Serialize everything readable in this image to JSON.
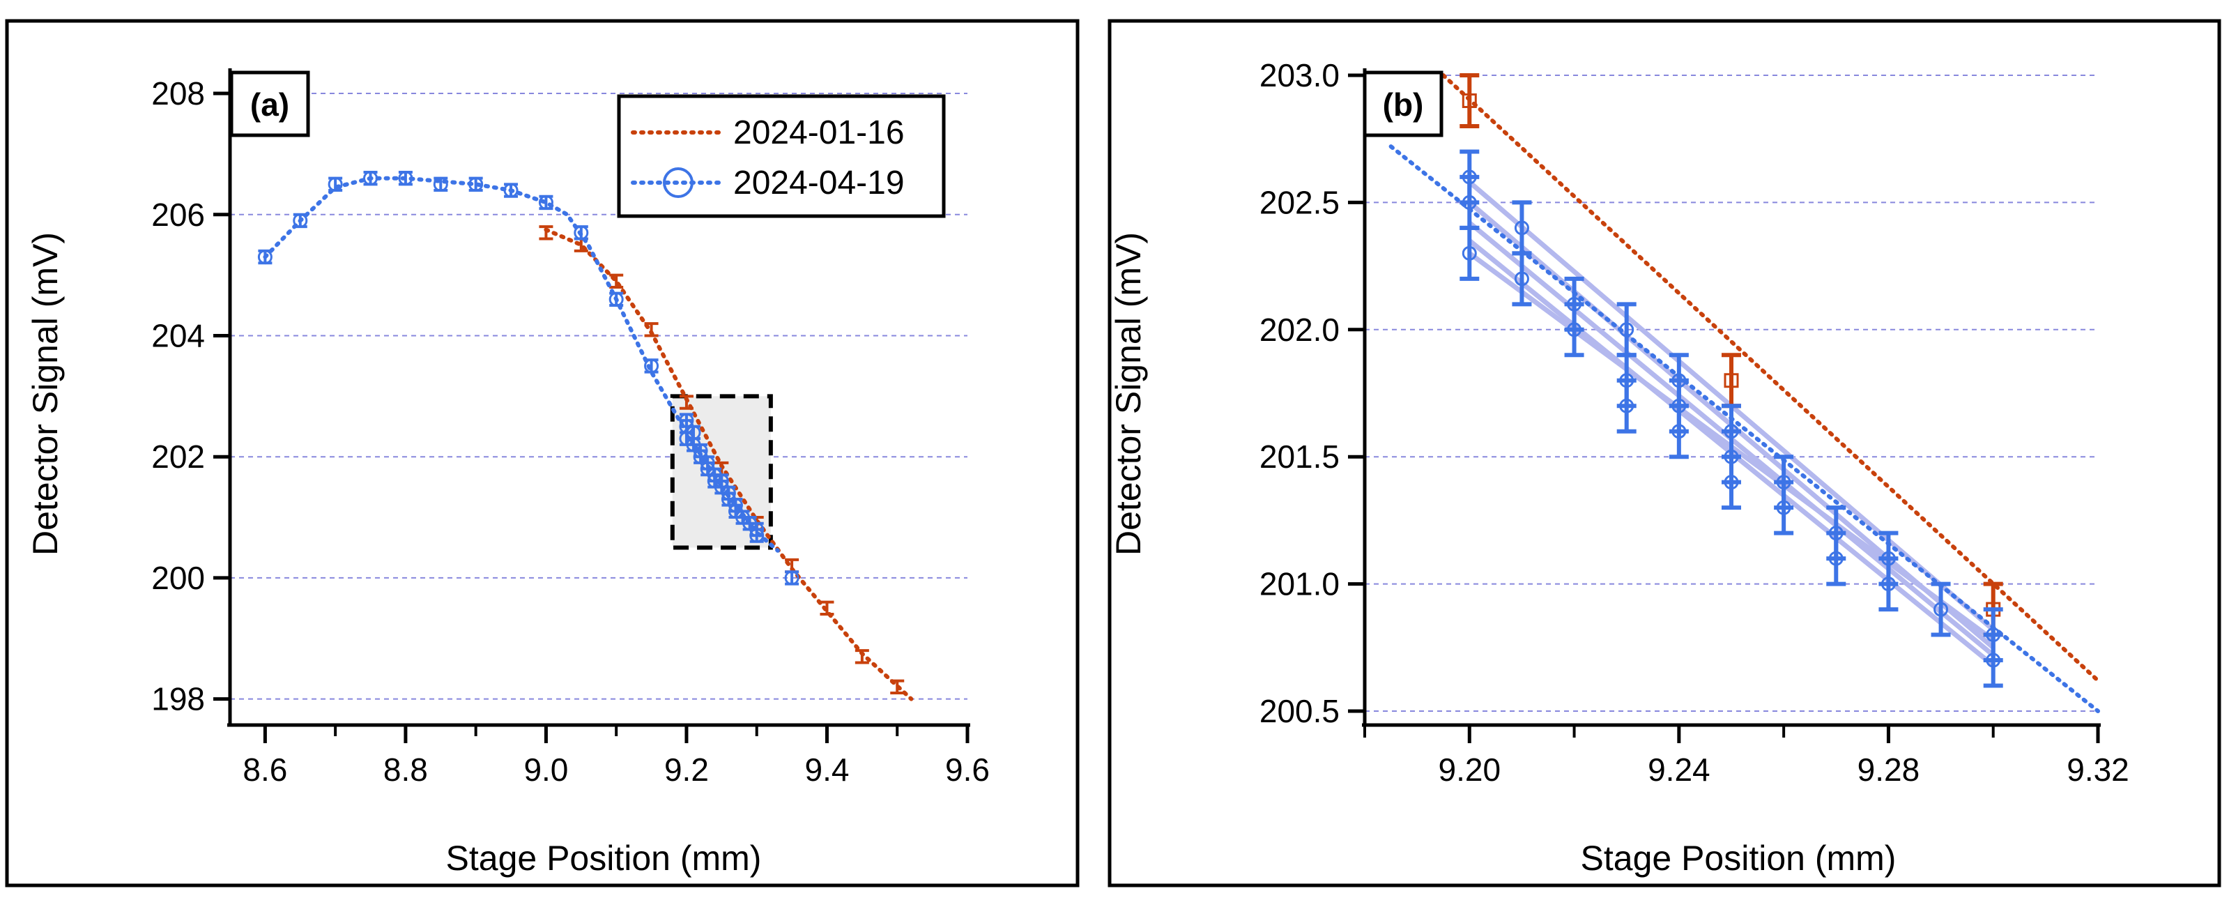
{
  "colors": {
    "series_2024_01_16": "#c8410c",
    "series_2024_04_19": "#3d74e6",
    "fit_band": "#b3b8ee",
    "grid": "#8888dd",
    "inset_fill": "#ececec"
  },
  "chart_data": [
    {
      "type": "line",
      "panel_label": "(a)",
      "xlabel": "Stage Position (mm)",
      "ylabel": "Detector Signal (mV)",
      "xlim": [
        8.55,
        9.6
      ],
      "ylim": [
        197.8,
        208.3
      ],
      "xticks": [
        "8.6",
        "8.8",
        "9.0",
        "9.2",
        "9.4",
        "9.6"
      ],
      "yticks": [
        "198",
        "200",
        "202",
        "204",
        "206",
        "208"
      ],
      "grid": "horizontal dashed",
      "legend": {
        "position": "top-right",
        "entries": [
          "2024-01-16",
          "2024-04-19"
        ]
      },
      "inset_box": {
        "x": [
          9.18,
          9.32
        ],
        "y": [
          200.5,
          203.0
        ]
      },
      "series": [
        {
          "name": "2024-01-16",
          "marker": "error-bar",
          "line": "dotted",
          "x": [
            9.0,
            9.05,
            9.1,
            9.15,
            9.2,
            9.25,
            9.3,
            9.35,
            9.4,
            9.45,
            9.5
          ],
          "y": [
            205.7,
            205.5,
            204.9,
            204.1,
            202.9,
            201.8,
            200.9,
            200.2,
            199.5,
            198.7,
            198.2
          ],
          "err": [
            0.1,
            0.1,
            0.1,
            0.1,
            0.1,
            0.1,
            0.1,
            0.1,
            0.1,
            0.1,
            0.1
          ],
          "fit_x": [
            9.0,
            9.05,
            9.1,
            9.15,
            9.2,
            9.25,
            9.3,
            9.35,
            9.4,
            9.45,
            9.52
          ],
          "fit_y": [
            205.75,
            205.5,
            204.9,
            204.05,
            202.95,
            201.85,
            200.95,
            200.15,
            199.45,
            198.75,
            198.0
          ]
        },
        {
          "name": "2024-04-19",
          "marker": "open-circle",
          "line": "dotted",
          "x": [
            8.6,
            8.65,
            8.7,
            8.75,
            8.8,
            8.85,
            8.9,
            8.95,
            9.0,
            9.05,
            9.1,
            9.15,
            9.2,
            9.2,
            9.2,
            9.21,
            9.21,
            9.22,
            9.22,
            9.23,
            9.23,
            9.24,
            9.24,
            9.25,
            9.25,
            9.26,
            9.26,
            9.27,
            9.27,
            9.28,
            9.29,
            9.3,
            9.3,
            9.35
          ],
          "y": [
            205.3,
            205.9,
            206.5,
            206.6,
            206.6,
            206.5,
            206.5,
            206.4,
            206.2,
            205.7,
            204.6,
            203.5,
            202.6,
            202.5,
            202.3,
            202.4,
            202.2,
            202.1,
            202.0,
            201.9,
            201.8,
            201.7,
            201.6,
            201.6,
            201.5,
            201.4,
            201.3,
            201.2,
            201.1,
            201.0,
            200.9,
            200.8,
            200.7,
            200.0
          ],
          "err": [
            0.1,
            0.1,
            0.1,
            0.1,
            0.1,
            0.1,
            0.1,
            0.1,
            0.1,
            0.1,
            0.1,
            0.1,
            0.1,
            0.1,
            0.1,
            0.1,
            0.1,
            0.1,
            0.1,
            0.1,
            0.1,
            0.1,
            0.1,
            0.1,
            0.1,
            0.1,
            0.1,
            0.1,
            0.1,
            0.1,
            0.1,
            0.1,
            0.1,
            0.1
          ],
          "fit_x": [
            8.6,
            8.65,
            8.7,
            8.75,
            8.8,
            8.85,
            8.9,
            8.95,
            9.0,
            9.03,
            9.06,
            9.1,
            9.15,
            9.2,
            9.25,
            9.3,
            9.33
          ],
          "fit_y": [
            205.3,
            205.9,
            206.45,
            206.6,
            206.6,
            206.55,
            206.5,
            206.4,
            206.2,
            206.0,
            205.5,
            204.6,
            203.4,
            202.4,
            201.5,
            200.75,
            200.45
          ]
        }
      ]
    },
    {
      "type": "line",
      "panel_label": "(b)",
      "xlabel": "Stage Position (mm)",
      "ylabel": "Detector Signal (mV)",
      "xlim": [
        9.18,
        9.32
      ],
      "ylim": [
        200.5,
        203.0
      ],
      "xticks": [
        "9.20",
        "9.24",
        "9.28",
        "9.32"
      ],
      "yticks": [
        "200.5",
        "201.0",
        "201.5",
        "202.0",
        "202.5",
        "203.0"
      ],
      "grid": "horizontal dashed",
      "series": [
        {
          "name": "2024-01-16",
          "marker": "open-square",
          "line": "dotted",
          "x": [
            9.2,
            9.25,
            9.3
          ],
          "y": [
            202.9,
            201.8,
            200.9
          ],
          "err": [
            0.1,
            0.1,
            0.1
          ],
          "fit_x": [
            9.195,
            9.32
          ],
          "fit_y": [
            203.0,
            200.62
          ]
        },
        {
          "name": "2024-04-19",
          "marker": "open-circle",
          "line": "dotted",
          "x": [
            9.2,
            9.2,
            9.2,
            9.21,
            9.21,
            9.22,
            9.22,
            9.23,
            9.23,
            9.23,
            9.24,
            9.24,
            9.24,
            9.25,
            9.25,
            9.25,
            9.26,
            9.26,
            9.27,
            9.27,
            9.28,
            9.28,
            9.29,
            9.3,
            9.3
          ],
          "y": [
            202.6,
            202.5,
            202.3,
            202.4,
            202.2,
            202.1,
            202.0,
            202.0,
            201.8,
            201.7,
            201.8,
            201.7,
            201.6,
            201.6,
            201.5,
            201.4,
            201.4,
            201.3,
            201.2,
            201.1,
            201.1,
            201.0,
            200.9,
            200.8,
            200.7
          ],
          "err": [
            0.1,
            0.1,
            0.1,
            0.1,
            0.1,
            0.1,
            0.1,
            0.1,
            0.1,
            0.1,
            0.1,
            0.1,
            0.1,
            0.1,
            0.1,
            0.1,
            0.1,
            0.1,
            0.1,
            0.1,
            0.1,
            0.1,
            0.1,
            0.1,
            0.1
          ],
          "fit_x": [
            9.185,
            9.32
          ],
          "fit_y": [
            202.72,
            200.5
          ],
          "fit_band": [
            {
              "x": [
                9.2,
                9.3
              ],
              "y": [
                202.58,
                200.82
              ]
            },
            {
              "x": [
                9.2,
                9.3
              ],
              "y": [
                202.5,
                200.75
              ]
            },
            {
              "x": [
                9.2,
                9.3
              ],
              "y": [
                202.42,
                200.72
              ]
            },
            {
              "x": [
                9.2,
                9.3
              ],
              "y": [
                202.35,
                200.68
              ]
            },
            {
              "x": [
                9.2,
                9.3
              ],
              "y": [
                202.3,
                200.78
              ]
            }
          ]
        }
      ]
    }
  ]
}
